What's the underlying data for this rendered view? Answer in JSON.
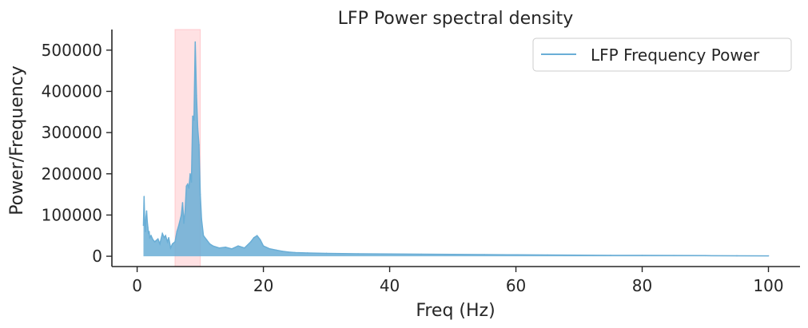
{
  "chart_data": {
    "type": "line",
    "title": "LFP Power spectral density",
    "xlabel": "Freq (Hz)",
    "ylabel": "Power/Frequency",
    "xlim": [
      -4,
      105
    ],
    "ylim": [
      -25000,
      550000
    ],
    "xticks": [
      0,
      20,
      40,
      60,
      80,
      100
    ],
    "yticks": [
      0,
      100000,
      200000,
      300000,
      400000,
      500000
    ],
    "grid": false,
    "legend": {
      "placement": "top-right",
      "entries": [
        "LFP Frequency Power"
      ]
    },
    "shaded_band": {
      "x_start": 6,
      "x_end": 10,
      "color": "#ffb3b8"
    },
    "series": [
      {
        "name": "LFP Frequency Power",
        "color": "#6aaed6",
        "x": [
          1.0,
          1.1,
          1.2,
          1.3,
          1.4,
          1.5,
          1.6,
          1.7,
          1.8,
          1.9,
          2.0,
          2.2,
          2.5,
          2.8,
          3.0,
          3.3,
          3.6,
          4.0,
          4.3,
          4.5,
          4.8,
          5.0,
          5.3,
          5.6,
          6.0,
          6.3,
          6.6,
          7.0,
          7.2,
          7.4,
          7.6,
          7.8,
          8.0,
          8.2,
          8.4,
          8.6,
          8.8,
          9.0,
          9.2,
          9.4,
          9.6,
          9.8,
          10.0,
          10.2,
          10.5,
          11.0,
          11.5,
          12.0,
          13.0,
          14.0,
          15.0,
          16.0,
          17.0,
          18.0,
          18.5,
          19.0,
          19.5,
          20.0,
          21.0,
          22.0,
          23.0,
          24.0,
          25.0,
          27.0,
          30.0,
          35.0,
          40.0,
          45.0,
          50.0,
          55.0,
          60.0,
          65.0,
          70.0,
          75.0,
          80.0,
          85.0,
          90.0,
          95.0,
          100.0
        ],
        "y": [
          75000,
          145000,
          80000,
          60000,
          95000,
          110000,
          85000,
          70000,
          55000,
          60000,
          45000,
          50000,
          40000,
          35000,
          38000,
          42000,
          30000,
          55000,
          45000,
          50000,
          35000,
          45000,
          20000,
          30000,
          35000,
          60000,
          75000,
          100000,
          130000,
          80000,
          110000,
          170000,
          175000,
          165000,
          200000,
          180000,
          340000,
          330000,
          520000,
          390000,
          310000,
          270000,
          150000,
          90000,
          50000,
          40000,
          30000,
          25000,
          20000,
          22000,
          18000,
          25000,
          20000,
          35000,
          45000,
          50000,
          40000,
          25000,
          18000,
          15000,
          12000,
          10000,
          9000,
          8000,
          7000,
          6000,
          5500,
          5000,
          4500,
          4000,
          3500,
          3000,
          2500,
          2200,
          2000,
          1800,
          1500,
          1200,
          1000
        ]
      }
    ]
  }
}
